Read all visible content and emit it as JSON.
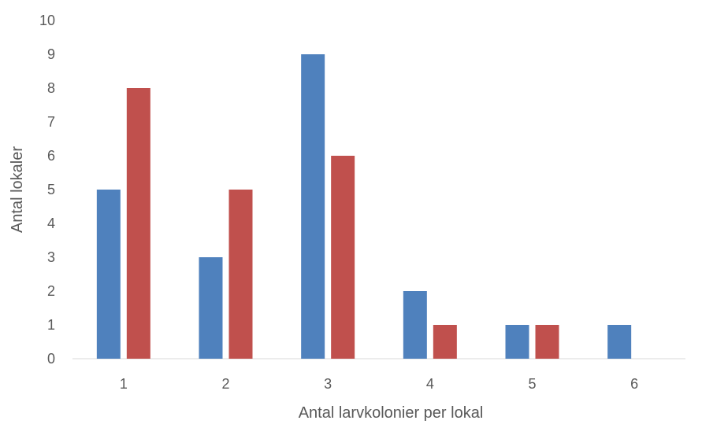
{
  "chart_data": {
    "type": "bar",
    "title": "",
    "xlabel": "Antal larvkolonier per lokal",
    "ylabel": "Antal lokaler",
    "categories": [
      "1",
      "2",
      "3",
      "4",
      "5",
      "6"
    ],
    "ylim": [
      0,
      10
    ],
    "yticks": [
      "0",
      "1",
      "2",
      "3",
      "4",
      "5",
      "6",
      "7",
      "8",
      "9",
      "10"
    ],
    "grid": false,
    "legend": "none",
    "series": [
      {
        "color": "#4F81BD",
        "values": [
          5,
          3,
          9,
          2,
          1,
          1
        ]
      },
      {
        "color": "#C0504D",
        "values": [
          8,
          5,
          6,
          1,
          1,
          0
        ]
      }
    ]
  }
}
